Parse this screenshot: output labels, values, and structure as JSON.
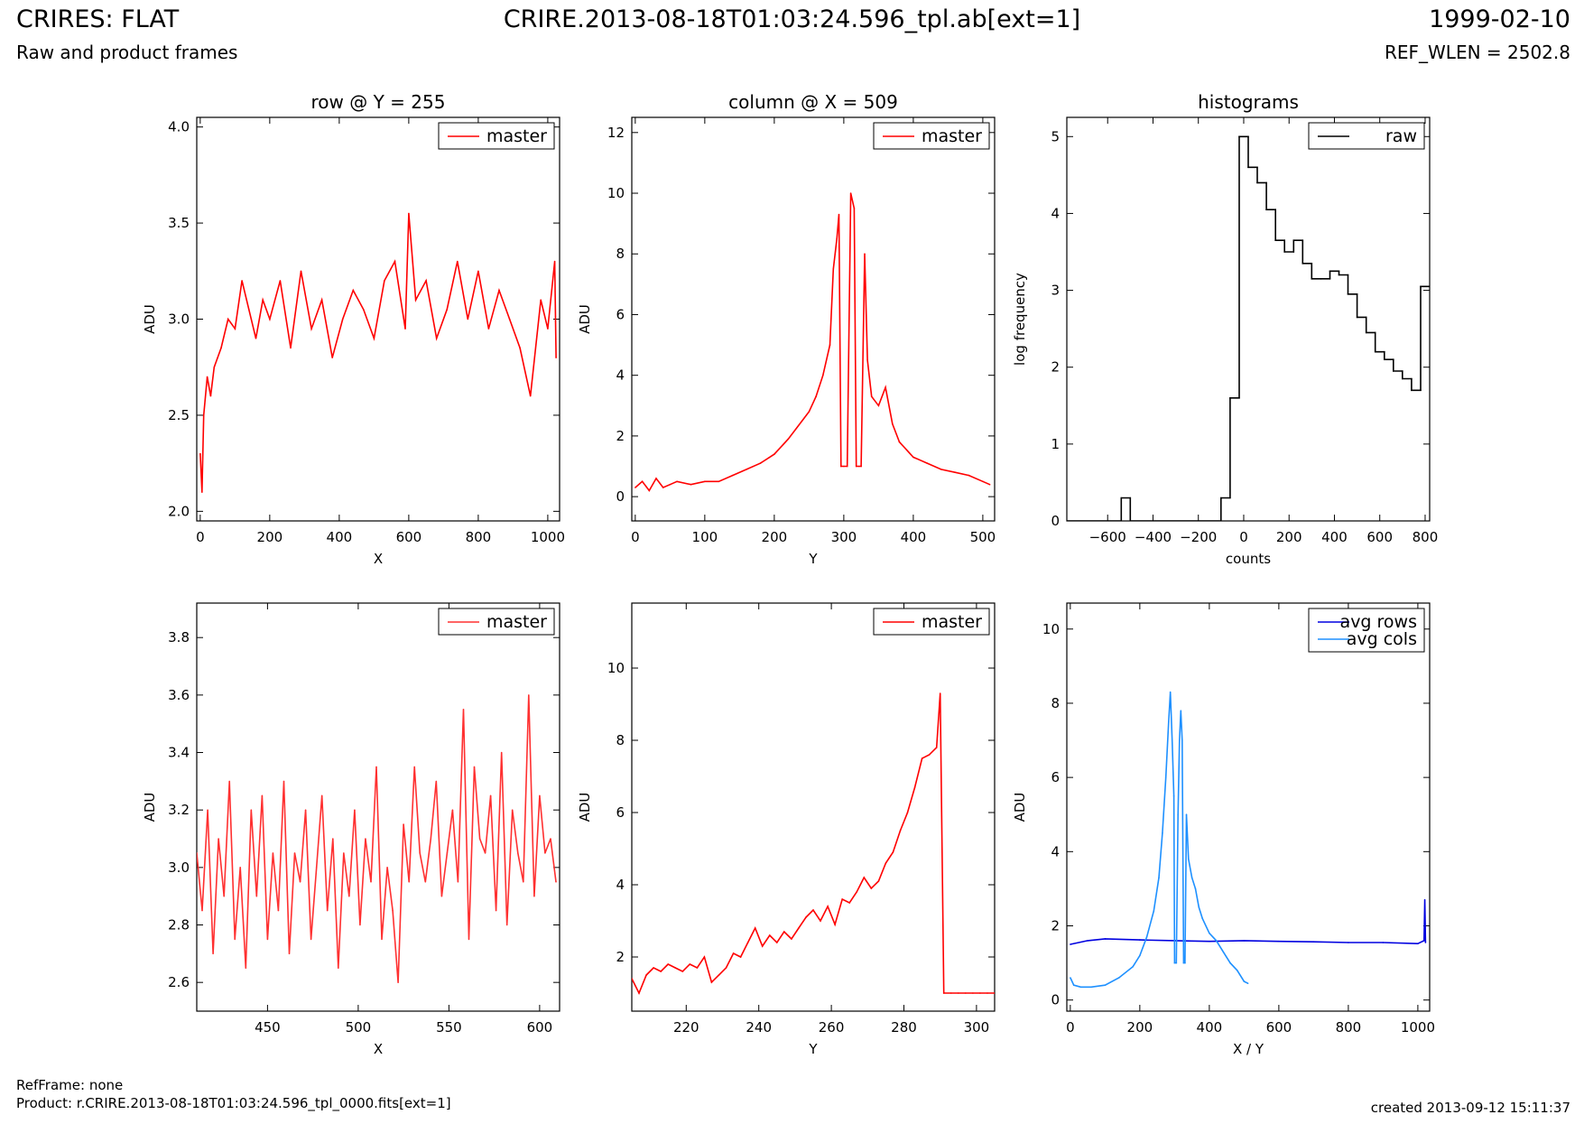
{
  "header": {
    "title": "CRIRES: FLAT",
    "subtitle": "Raw and product frames",
    "filename": "CRIRE.2013-08-18T01:03:24.596_tpl.ab[ext=1]",
    "date": "1999-02-10",
    "ref_wlen": "REF_WLEN = 2502.8"
  },
  "footer": {
    "refframe": "RefFrame: none",
    "product": "Product: r.CRIRE.2013-08-18T01:03:24.596_tpl_0000.fits[ext=1]",
    "created": "created 2013-09-12 15:11:37"
  },
  "colors": {
    "master": "#ff0000",
    "avg_rows": "#0000e0",
    "avg_cols": "#1e90ff",
    "raw": "#000000"
  },
  "chart_data": [
    {
      "type": "line",
      "title": "row @ Y = 255",
      "xlabel": "X",
      "ylabel": "ADU",
      "xlim": [
        -10,
        1034
      ],
      "ylim": [
        1.95,
        4.05
      ],
      "xticks": [
        "0",
        "200",
        "400",
        "600",
        "800",
        "1000"
      ],
      "yticks": [
        "2.0",
        "2.5",
        "3.0",
        "3.5",
        "4.0"
      ],
      "legend": "top-right",
      "series": [
        {
          "name": "master",
          "color": "#ff0000",
          "x": [
            0,
            5,
            10,
            20,
            30,
            40,
            60,
            80,
            100,
            120,
            140,
            160,
            180,
            200,
            230,
            260,
            290,
            320,
            350,
            380,
            410,
            440,
            470,
            500,
            530,
            560,
            590,
            600,
            620,
            650,
            680,
            710,
            740,
            770,
            800,
            830,
            860,
            890,
            920,
            950,
            980,
            1000,
            1020,
            1024
          ],
          "values": [
            2.3,
            2.1,
            2.5,
            2.7,
            2.6,
            2.75,
            2.85,
            3.0,
            2.95,
            3.2,
            3.05,
            2.9,
            3.1,
            3.0,
            3.2,
            2.85,
            3.25,
            2.95,
            3.1,
            2.8,
            3.0,
            3.15,
            3.05,
            2.9,
            3.2,
            3.3,
            2.95,
            3.55,
            3.1,
            3.2,
            2.9,
            3.05,
            3.3,
            3.0,
            3.25,
            2.95,
            3.15,
            3.0,
            2.85,
            2.6,
            3.1,
            2.95,
            3.3,
            2.8
          ]
        }
      ]
    },
    {
      "type": "line",
      "title": "column @ X = 509",
      "xlabel": "Y",
      "ylabel": "ADU",
      "xlim": [
        -5,
        517
      ],
      "ylim": [
        -0.8,
        12.5
      ],
      "xticks": [
        "0",
        "100",
        "200",
        "300",
        "400",
        "500"
      ],
      "yticks": [
        "0",
        "2",
        "4",
        "6",
        "8",
        "10",
        "12"
      ],
      "legend": "top-right",
      "series": [
        {
          "name": "master",
          "color": "#ff0000",
          "x": [
            0,
            10,
            20,
            30,
            40,
            50,
            60,
            80,
            100,
            120,
            140,
            160,
            180,
            200,
            220,
            240,
            250,
            260,
            270,
            280,
            285,
            290,
            293,
            296,
            300,
            305,
            310,
            315,
            318,
            322,
            325,
            330,
            334,
            340,
            350,
            360,
            370,
            380,
            400,
            420,
            440,
            460,
            480,
            500,
            510
          ],
          "values": [
            0.3,
            0.5,
            0.2,
            0.6,
            0.3,
            0.4,
            0.5,
            0.4,
            0.5,
            0.5,
            0.7,
            0.9,
            1.1,
            1.4,
            1.9,
            2.5,
            2.8,
            3.3,
            4.0,
            5.0,
            7.5,
            8.5,
            9.3,
            1.0,
            1.0,
            1.0,
            10.0,
            9.5,
            1.0,
            1.0,
            1.0,
            8.0,
            4.5,
            3.3,
            3.0,
            3.6,
            2.4,
            1.8,
            1.3,
            1.1,
            0.9,
            0.8,
            0.7,
            0.5,
            0.4
          ]
        }
      ]
    },
    {
      "type": "line",
      "title": "histograms",
      "xlabel": "counts",
      "ylabel": "log frequency",
      "xlim": [
        -780,
        820
      ],
      "ylim": [
        0,
        5.25
      ],
      "xticks": [
        "−600",
        "−400",
        "−200",
        "0",
        "200",
        "400",
        "600",
        "800"
      ],
      "yticks": [
        "0",
        "1",
        "2",
        "3",
        "4",
        "5"
      ],
      "legend": "top-right",
      "series": [
        {
          "name": "raw",
          "color": "#000000",
          "x": [
            -780,
            -540,
            -540,
            -500,
            -500,
            -100,
            -100,
            -60,
            -60,
            -20,
            -20,
            20,
            20,
            60,
            60,
            100,
            100,
            140,
            140,
            180,
            180,
            220,
            220,
            260,
            260,
            300,
            300,
            340,
            340,
            380,
            380,
            420,
            420,
            460,
            460,
            500,
            500,
            540,
            540,
            580,
            580,
            620,
            620,
            660,
            660,
            700,
            700,
            740,
            740,
            780,
            780,
            820
          ],
          "values": [
            0,
            0,
            0.3,
            0.3,
            0,
            0,
            0.3,
            0.3,
            1.6,
            1.6,
            5.0,
            5.0,
            4.6,
            4.6,
            4.4,
            4.4,
            4.05,
            4.05,
            3.65,
            3.65,
            3.5,
            3.5,
            3.65,
            3.65,
            3.35,
            3.35,
            3.15,
            3.15,
            3.15,
            3.15,
            3.25,
            3.25,
            3.2,
            3.2,
            2.95,
            2.95,
            2.65,
            2.65,
            2.45,
            2.45,
            2.2,
            2.2,
            2.1,
            2.1,
            1.95,
            1.95,
            1.85,
            1.85,
            1.7,
            1.7,
            3.05,
            3.05
          ]
        }
      ]
    },
    {
      "type": "line",
      "title": "",
      "xlabel": "X",
      "ylabel": "ADU",
      "xlim": [
        411,
        611
      ],
      "ylim": [
        2.5,
        3.92
      ],
      "xticks": [
        "450",
        "500",
        "550",
        "600"
      ],
      "yticks": [
        "2.6",
        "2.8",
        "3.0",
        "3.2",
        "3.4",
        "3.6",
        "3.8"
      ],
      "legend": "top-right",
      "series": [
        {
          "name": "master",
          "color": "#ff3030",
          "x": [
            411,
            414,
            417,
            420,
            423,
            426,
            429,
            432,
            435,
            438,
            441,
            444,
            447,
            450,
            453,
            456,
            459,
            462,
            465,
            468,
            471,
            474,
            477,
            480,
            483,
            486,
            489,
            492,
            495,
            498,
            501,
            504,
            507,
            510,
            513,
            516,
            519,
            522,
            525,
            528,
            531,
            534,
            537,
            540,
            543,
            546,
            549,
            552,
            555,
            558,
            561,
            564,
            567,
            570,
            573,
            576,
            579,
            582,
            585,
            588,
            591,
            594,
            597,
            600,
            603,
            606,
            609
          ],
          "values": [
            3.05,
            2.85,
            3.2,
            2.7,
            3.1,
            2.9,
            3.3,
            2.75,
            3.0,
            2.65,
            3.2,
            2.9,
            3.25,
            2.75,
            3.05,
            2.85,
            3.3,
            2.7,
            3.05,
            2.95,
            3.2,
            2.75,
            3.0,
            3.25,
            2.85,
            3.1,
            2.65,
            3.05,
            2.9,
            3.2,
            2.8,
            3.1,
            2.95,
            3.35,
            2.75,
            3.0,
            2.85,
            2.6,
            3.15,
            2.95,
            3.35,
            3.05,
            2.95,
            3.1,
            3.3,
            2.9,
            3.05,
            3.2,
            2.95,
            3.55,
            2.75,
            3.35,
            3.1,
            3.05,
            3.25,
            2.85,
            3.4,
            2.8,
            3.2,
            3.05,
            2.95,
            3.6,
            2.9,
            3.25,
            3.05,
            3.1,
            2.95
          ]
        }
      ]
    },
    {
      "type": "line",
      "title": "",
      "xlabel": "Y",
      "ylabel": "ADU",
      "xlim": [
        205,
        305
      ],
      "ylim": [
        0.5,
        11.8
      ],
      "xticks": [
        "220",
        "240",
        "260",
        "280",
        "300"
      ],
      "yticks": [
        "2",
        "4",
        "6",
        "8",
        "10"
      ],
      "legend": "top-right",
      "series": [
        {
          "name": "master",
          "color": "#ff0000",
          "x": [
            205,
            207,
            209,
            211,
            213,
            215,
            217,
            219,
            221,
            223,
            225,
            227,
            229,
            231,
            233,
            235,
            237,
            239,
            241,
            243,
            245,
            247,
            249,
            251,
            253,
            255,
            257,
            259,
            261,
            263,
            265,
            267,
            269,
            271,
            273,
            275,
            277,
            279,
            281,
            283,
            285,
            287,
            289,
            290,
            291,
            293,
            295,
            297,
            299,
            301,
            303,
            305
          ],
          "values": [
            1.4,
            1.0,
            1.5,
            1.7,
            1.6,
            1.8,
            1.7,
            1.6,
            1.8,
            1.7,
            2.0,
            1.3,
            1.5,
            1.7,
            2.1,
            2.0,
            2.4,
            2.8,
            2.3,
            2.6,
            2.4,
            2.7,
            2.5,
            2.8,
            3.1,
            3.3,
            3.0,
            3.4,
            2.9,
            3.6,
            3.5,
            3.8,
            4.2,
            3.9,
            4.1,
            4.6,
            4.9,
            5.5,
            6.0,
            6.7,
            7.5,
            7.6,
            7.8,
            9.3,
            1.0,
            1.0,
            1.0,
            1.0,
            1.0,
            1.0,
            1.0,
            1.0
          ]
        }
      ]
    },
    {
      "type": "line",
      "title": "",
      "xlabel": "X / Y",
      "ylabel": "ADU",
      "xlim": [
        -10,
        1034
      ],
      "ylim": [
        -0.3,
        10.7
      ],
      "xticks": [
        "0",
        "200",
        "400",
        "600",
        "800",
        "1000"
      ],
      "yticks": [
        "0",
        "2",
        "4",
        "6",
        "8",
        "10"
      ],
      "legend": "top-right",
      "series": [
        {
          "name": "avg rows",
          "color": "#0000e0",
          "x": [
            0,
            50,
            100,
            200,
            300,
            400,
            500,
            600,
            700,
            800,
            900,
            1000,
            1018,
            1020,
            1022
          ],
          "values": [
            1.5,
            1.6,
            1.65,
            1.62,
            1.6,
            1.58,
            1.6,
            1.58,
            1.57,
            1.55,
            1.55,
            1.52,
            1.6,
            2.7,
            1.55
          ]
        },
        {
          "name": "avg cols",
          "color": "#1e90ff",
          "x": [
            0,
            10,
            30,
            60,
            100,
            140,
            180,
            200,
            220,
            240,
            255,
            265,
            275,
            283,
            288,
            293,
            298,
            300,
            305,
            310,
            314,
            318,
            322,
            326,
            330,
            334,
            340,
            350,
            360,
            370,
            380,
            400,
            420,
            440,
            460,
            480,
            500,
            511
          ],
          "values": [
            0.6,
            0.4,
            0.35,
            0.35,
            0.4,
            0.6,
            0.9,
            1.2,
            1.7,
            2.4,
            3.3,
            4.5,
            6.0,
            7.5,
            8.3,
            7.0,
            5.5,
            1.0,
            1.0,
            5.0,
            7.0,
            7.8,
            7.0,
            1.0,
            1.0,
            5.0,
            3.8,
            3.3,
            3.0,
            2.5,
            2.2,
            1.8,
            1.6,
            1.3,
            1.0,
            0.8,
            0.5,
            0.45
          ]
        }
      ]
    }
  ]
}
